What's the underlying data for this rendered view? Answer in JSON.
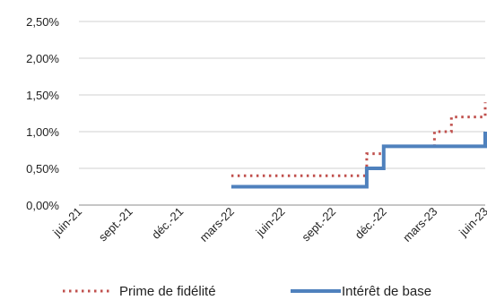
{
  "chart_data": {
    "type": "line",
    "x_tick_labels": [
      "juin-21",
      "sept.-21",
      "déc.-21",
      "mars-22",
      "juin-22",
      "sept.-22",
      "déc.-22",
      "mars-23",
      "juin-23"
    ],
    "y_tick_labels": [
      "0,00%",
      "0,50%",
      "1,00%",
      "1,50%",
      "2,00%",
      "2,50%"
    ],
    "ylim": [
      0,
      2.5
    ],
    "x_range": [
      "2021-06",
      "2023-06"
    ],
    "grid": {
      "horizontal": true,
      "vertical": false
    },
    "legend_position": "bottom",
    "series": [
      {
        "name": "Prime de fidélité",
        "style": "dotted",
        "color": "#C0504D",
        "step": true,
        "points": [
          {
            "x": "2022-03",
            "y": 0.4
          },
          {
            "x": "2022-11",
            "y": 0.4
          },
          {
            "x": "2022-11",
            "y": 0.7
          },
          {
            "x": "2022-12",
            "y": 0.7
          },
          {
            "x": "2022-12",
            "y": 0.8
          },
          {
            "x": "2023-03",
            "y": 0.8
          },
          {
            "x": "2023-03",
            "y": 1.0
          },
          {
            "x": "2023-04",
            "y": 1.0
          },
          {
            "x": "2023-04",
            "y": 1.2
          },
          {
            "x": "2023-06",
            "y": 1.2
          },
          {
            "x": "2023-06",
            "y": 1.4
          }
        ]
      },
      {
        "name": "Intérêt de base",
        "style": "solid",
        "color": "#4F81BD",
        "step": true,
        "points": [
          {
            "x": "2022-03",
            "y": 0.25
          },
          {
            "x": "2022-11",
            "y": 0.25
          },
          {
            "x": "2022-11",
            "y": 0.5
          },
          {
            "x": "2022-12",
            "y": 0.5
          },
          {
            "x": "2022-12",
            "y": 0.8
          },
          {
            "x": "2023-06",
            "y": 0.8
          },
          {
            "x": "2023-06",
            "y": 1.0
          }
        ]
      }
    ]
  }
}
